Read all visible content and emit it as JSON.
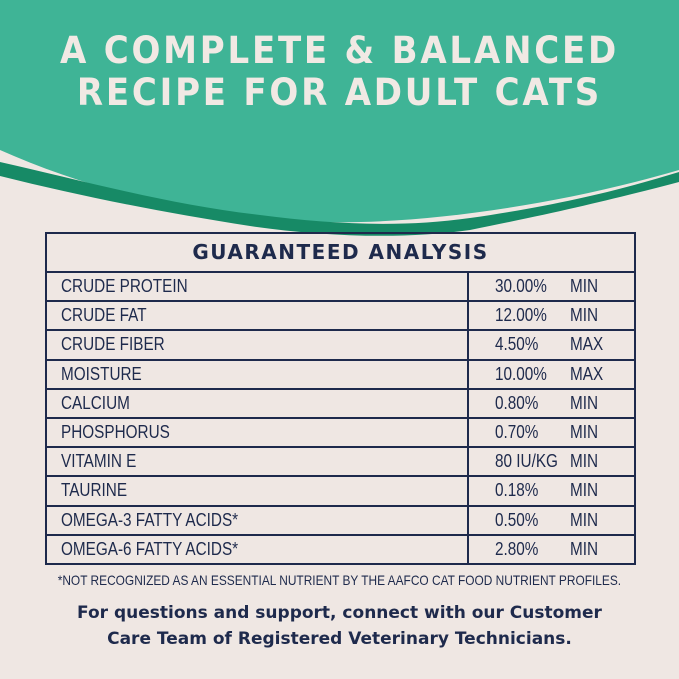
{
  "colors": {
    "teal": "#3fb496",
    "dark_green": "#178a66",
    "background": "#efe7e3",
    "navy": "#1e2a4c"
  },
  "headline": {
    "line1": "A COMPLETE & BALANCED",
    "line2": "RECIPE FOR ADULT CATS"
  },
  "table": {
    "title": "GUARANTEED ANALYSIS",
    "rows": [
      {
        "name": "CRUDE PROTEIN",
        "value": "30.00%",
        "type": "MIN"
      },
      {
        "name": "CRUDE FAT",
        "value": "12.00%",
        "type": "MIN"
      },
      {
        "name": "CRUDE FIBER",
        "value": "4.50%",
        "type": "MAX"
      },
      {
        "name": "MOISTURE",
        "value": "10.00%",
        "type": "MAX"
      },
      {
        "name": "CALCIUM",
        "value": "0.80%",
        "type": "MIN"
      },
      {
        "name": "PHOSPHORUS",
        "value": "0.70%",
        "type": "MIN"
      },
      {
        "name": "VITAMIN E",
        "value": "80 IU/KG",
        "type": "MIN"
      },
      {
        "name": "TAURINE",
        "value": "0.18%",
        "type": "MIN"
      },
      {
        "name": "OMEGA-3 FATTY ACIDS*",
        "value": "0.50%",
        "type": "MIN"
      },
      {
        "name": "OMEGA-6 FATTY ACIDS*",
        "value": "2.80%",
        "type": "MIN"
      }
    ]
  },
  "footnote": "*NOT RECOGNIZED AS AN ESSENTIAL NUTRIENT BY THE AAFCO CAT FOOD NUTRIENT PROFILES.",
  "support": {
    "line1": "For questions and support, connect with our Customer",
    "line2": "Care Team of Registered Veterinary Technicians."
  }
}
